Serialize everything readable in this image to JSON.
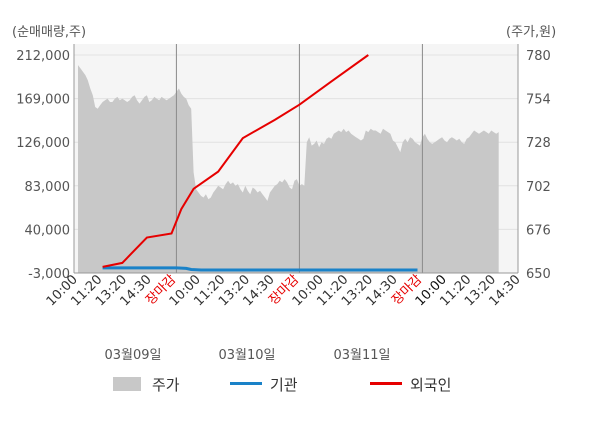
{
  "chart_data": {
    "type": "area",
    "left_axis": {
      "unit_label": "(순매매량,주)",
      "ticks": [
        "212,000",
        "169,000",
        "126,000",
        "83,000",
        "40,000",
        "-3,000"
      ],
      "range": [
        -3000,
        212000
      ]
    },
    "right_axis": {
      "unit_label": "(주가,원)",
      "ticks": [
        "780",
        "754",
        "728",
        "702",
        "676",
        "650"
      ],
      "range": [
        650,
        780
      ]
    },
    "x_ticks": [
      "10:00",
      "11:20",
      "13:20",
      "14:30",
      "장마감",
      "10:00",
      "11:20",
      "13:20",
      "14:30",
      "장마감",
      "10:00",
      "11:20",
      "13:20",
      "14:30",
      "장마감",
      "10:00",
      "11:20",
      "13:20",
      "14:30"
    ],
    "x_tick_colors": [
      "#333333",
      "#333333",
      "#333333",
      "#333333",
      "#e60000",
      "#333333",
      "#333333",
      "#333333",
      "#333333",
      "#e60000",
      "#333333",
      "#333333",
      "#333333",
      "#333333",
      "#e60000",
      "#111111",
      "#333333",
      "#333333",
      "#333333"
    ],
    "dates": [
      "03월09일",
      "03월10일",
      "03월11일"
    ],
    "series": [
      {
        "name": "주가",
        "color": "#c8c8c8",
        "axis": "right",
        "values": [
          [
            0,
            774
          ],
          [
            1,
            772
          ],
          [
            2,
            770
          ],
          [
            3,
            768
          ],
          [
            4,
            765
          ],
          [
            5,
            760
          ],
          [
            6,
            756
          ],
          [
            7,
            749
          ],
          [
            8,
            748
          ],
          [
            9,
            750
          ],
          [
            10,
            752
          ],
          [
            11,
            753
          ],
          [
            12,
            754
          ],
          [
            13,
            752
          ],
          [
            14,
            752
          ],
          [
            15,
            754
          ],
          [
            16,
            755
          ],
          [
            17,
            753
          ],
          [
            18,
            754
          ],
          [
            19,
            753
          ],
          [
            20,
            752
          ],
          [
            21,
            753
          ],
          [
            22,
            755
          ],
          [
            23,
            756
          ],
          [
            24,
            753
          ],
          [
            25,
            751
          ],
          [
            26,
            753
          ],
          [
            27,
            755
          ],
          [
            28,
            756
          ],
          [
            29,
            752
          ],
          [
            30,
            753
          ],
          [
            31,
            755
          ],
          [
            32,
            754
          ],
          [
            33,
            753
          ],
          [
            34,
            755
          ],
          [
            35,
            754
          ],
          [
            36,
            753
          ],
          [
            37,
            754
          ],
          [
            38,
            755
          ],
          [
            39,
            756
          ],
          [
            40,
            758
          ],
          [
            41,
            760
          ],
          [
            42,
            757
          ],
          [
            43,
            755
          ],
          [
            44,
            754
          ],
          [
            45,
            750
          ],
          [
            46,
            748
          ],
          [
            47,
            710
          ],
          [
            48,
            700
          ],
          [
            49,
            698
          ],
          [
            50,
            696
          ],
          [
            51,
            695
          ],
          [
            52,
            697
          ],
          [
            53,
            694
          ],
          [
            54,
            695
          ],
          [
            55,
            698
          ],
          [
            56,
            700
          ],
          [
            57,
            702
          ],
          [
            58,
            701
          ],
          [
            59,
            700
          ],
          [
            60,
            703
          ],
          [
            61,
            705
          ],
          [
            62,
            703
          ],
          [
            63,
            704
          ],
          [
            64,
            702
          ],
          [
            65,
            703
          ],
          [
            66,
            700
          ],
          [
            67,
            698
          ],
          [
            68,
            702
          ],
          [
            69,
            699
          ],
          [
            70,
            697
          ],
          [
            71,
            701
          ],
          [
            72,
            700
          ],
          [
            73,
            698
          ],
          [
            74,
            699
          ],
          [
            75,
            697
          ],
          [
            76,
            695
          ],
          [
            77,
            693
          ],
          [
            78,
            698
          ],
          [
            79,
            700
          ],
          [
            80,
            702
          ],
          [
            81,
            703
          ],
          [
            82,
            705
          ],
          [
            83,
            704
          ],
          [
            84,
            706
          ],
          [
            85,
            704
          ],
          [
            86,
            701
          ],
          [
            87,
            700
          ],
          [
            88,
            705
          ],
          [
            89,
            706
          ],
          [
            90,
            702
          ],
          [
            91,
            703
          ],
          [
            92,
            702
          ],
          [
            93,
            728
          ],
          [
            94,
            731
          ],
          [
            95,
            726
          ],
          [
            96,
            727
          ],
          [
            97,
            729
          ],
          [
            98,
            725
          ],
          [
            99,
            728
          ],
          [
            100,
            727
          ],
          [
            101,
            730
          ],
          [
            102,
            731
          ],
          [
            103,
            730
          ],
          [
            104,
            733
          ],
          [
            105,
            734
          ],
          [
            106,
            735
          ],
          [
            107,
            734
          ],
          [
            108,
            736
          ],
          [
            109,
            734
          ],
          [
            110,
            735
          ],
          [
            111,
            733
          ],
          [
            112,
            732
          ],
          [
            113,
            731
          ],
          [
            114,
            730
          ],
          [
            115,
            729
          ],
          [
            116,
            730
          ],
          [
            117,
            735
          ],
          [
            118,
            734
          ],
          [
            119,
            736
          ],
          [
            120,
            735
          ],
          [
            121,
            735
          ],
          [
            122,
            734
          ],
          [
            123,
            733
          ],
          [
            124,
            736
          ],
          [
            125,
            735
          ],
          [
            126,
            734
          ],
          [
            127,
            733
          ],
          [
            128,
            729
          ],
          [
            129,
            728
          ],
          [
            130,
            725
          ],
          [
            131,
            722
          ],
          [
            132,
            728
          ],
          [
            133,
            730
          ],
          [
            134,
            728
          ],
          [
            135,
            731
          ],
          [
            136,
            730
          ],
          [
            137,
            728
          ],
          [
            138,
            727
          ],
          [
            139,
            726
          ],
          [
            140,
            731
          ],
          [
            141,
            733
          ],
          [
            142,
            730
          ],
          [
            143,
            728
          ],
          [
            144,
            727
          ],
          [
            145,
            728
          ],
          [
            146,
            729
          ],
          [
            147,
            730
          ],
          [
            148,
            731
          ],
          [
            149,
            729
          ],
          [
            150,
            728
          ],
          [
            151,
            730
          ],
          [
            152,
            731
          ],
          [
            153,
            730
          ],
          [
            154,
            729
          ],
          [
            155,
            730
          ],
          [
            156,
            728
          ],
          [
            157,
            727
          ],
          [
            158,
            730
          ],
          [
            159,
            731
          ],
          [
            160,
            733
          ],
          [
            161,
            735
          ],
          [
            162,
            734
          ],
          [
            163,
            733
          ],
          [
            164,
            734
          ],
          [
            165,
            735
          ],
          [
            166,
            734
          ],
          [
            167,
            733
          ],
          [
            168,
            735
          ],
          [
            169,
            734
          ],
          [
            170,
            733
          ],
          [
            171,
            734
          ]
        ]
      },
      {
        "name": "기관",
        "color": "#1a82c8",
        "axis": "left",
        "values": [
          [
            10,
            2000
          ],
          [
            20,
            2000
          ],
          [
            30,
            2000
          ],
          [
            40,
            2000
          ],
          [
            44,
            1500
          ],
          [
            46,
            500
          ],
          [
            50,
            0
          ],
          [
            60,
            0
          ],
          [
            70,
            0
          ],
          [
            80,
            0
          ],
          [
            90,
            0
          ],
          [
            100,
            0
          ],
          [
            110,
            0
          ],
          [
            120,
            0
          ],
          [
            130,
            0
          ],
          [
            138,
            0
          ]
        ]
      },
      {
        "name": "외국인",
        "color": "#e60000",
        "axis": "left",
        "values": [
          [
            10,
            3000
          ],
          [
            18,
            7000
          ],
          [
            28,
            32000
          ],
          [
            38,
            36000
          ],
          [
            42,
            60000
          ],
          [
            47,
            80000
          ],
          [
            57,
            97000
          ],
          [
            67,
            130000
          ],
          [
            80,
            148000
          ],
          [
            90,
            163000
          ],
          [
            103,
            186000
          ],
          [
            118,
            212000
          ]
        ]
      }
    ],
    "legend": [
      "주가",
      "기관",
      "외국인"
    ],
    "legend_position": "bottom",
    "grid": true
  }
}
